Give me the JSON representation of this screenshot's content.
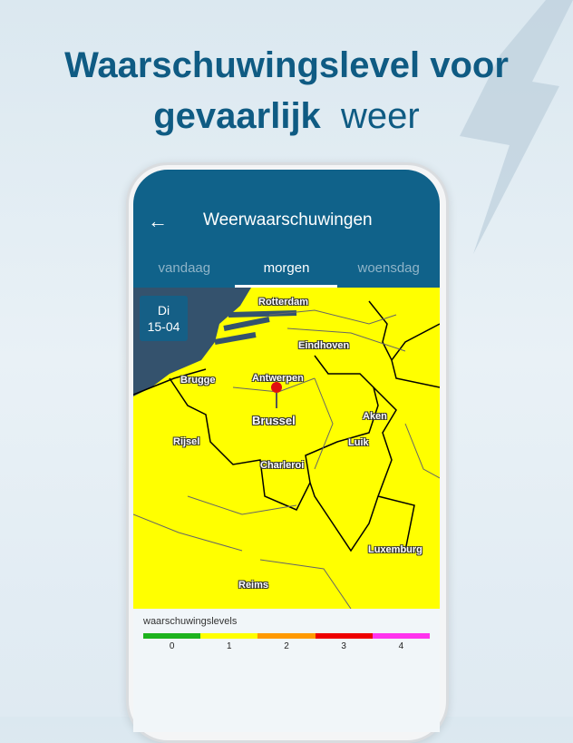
{
  "headline": {
    "line1": "Waarschuwingslevel voor",
    "line2_bold": "gevaarlijk",
    "line2_rest": "weer"
  },
  "header": {
    "back_icon": "arrow-left-icon",
    "title": "Weerwaarschuwingen"
  },
  "tabs": [
    {
      "label": "vandaag"
    },
    {
      "label": "morgen",
      "active": true
    },
    {
      "label": "woensdag"
    }
  ],
  "map": {
    "date_day": "Di",
    "date": "15-04",
    "warning_color": "#ffff00",
    "cities": [
      "Rotterdam",
      "Eindhoven",
      "Brugge",
      "Antwerpen",
      "Brussel",
      "Rijsel",
      "Aken",
      "Luik",
      "Charleroi",
      "Luxemburg",
      "Reims"
    ]
  },
  "legend": {
    "title": "waarschuwingslevels",
    "levels": [
      {
        "label": "0",
        "color": "#1db31d"
      },
      {
        "label": "1",
        "color": "#ffff00"
      },
      {
        "label": "2",
        "color": "#ff9a00"
      },
      {
        "label": "3",
        "color": "#ee0000"
      },
      {
        "label": "4",
        "color": "#ff33ee"
      }
    ]
  }
}
